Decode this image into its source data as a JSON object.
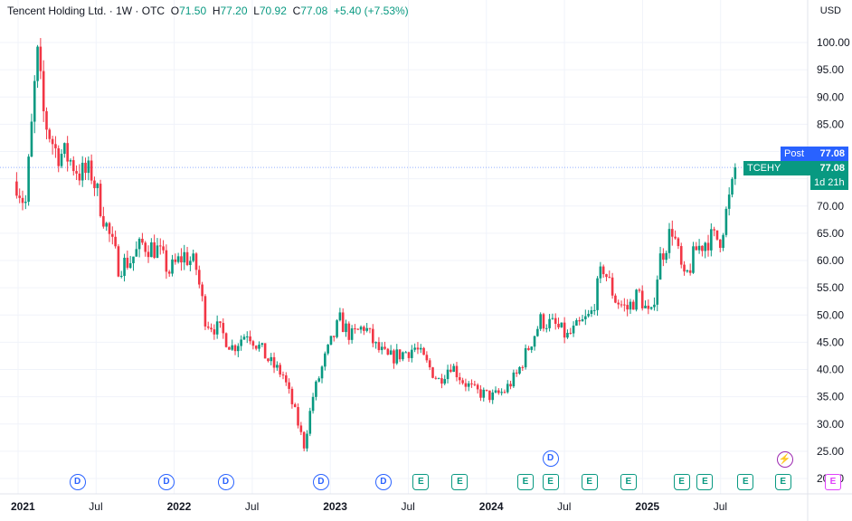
{
  "header": {
    "name": "Tencent Holding Ltd.",
    "interval": "1W",
    "exchange": "OTC",
    "open_label": "O",
    "open": "71.50",
    "high_label": "H",
    "high": "77.20",
    "low_label": "L",
    "low": "70.92",
    "close_label": "C",
    "close": "77.08",
    "change": "+5.40 (+7.53%)"
  },
  "currency": "USD",
  "tags": {
    "post_label": "Post",
    "post_value": "77.08",
    "symbol": "TCEHY",
    "symbol_value": "77.08",
    "countdown": "1d 21h"
  },
  "colors": {
    "up": "#089981",
    "down": "#f23645",
    "post": "#2962ff"
  },
  "events": [
    {
      "type": "D",
      "date": "2021.38"
    },
    {
      "type": "D",
      "date": "2021.95"
    },
    {
      "type": "D",
      "date": "2022.33"
    },
    {
      "type": "D",
      "date": "2022.94"
    },
    {
      "type": "D",
      "date": "2023.34"
    },
    {
      "type": "E",
      "date": "2023.58"
    },
    {
      "type": "E",
      "date": "2023.83"
    },
    {
      "type": "E",
      "date": "2024.25"
    },
    {
      "type": "D",
      "date": "2024.41"
    },
    {
      "type": "E",
      "date": "2024.41"
    },
    {
      "type": "E",
      "date": "2024.66"
    },
    {
      "type": "E",
      "date": "2024.91"
    },
    {
      "type": "E",
      "date": "2025.25"
    },
    {
      "type": "E",
      "date": "2025.4"
    },
    {
      "type": "E",
      "date": "2025.66"
    },
    {
      "type": "E",
      "date": "2025.9"
    }
  ],
  "chart_data": {
    "type": "candlestick",
    "title": "Tencent Holding Ltd. · 1W · OTC",
    "x_tick_labels": [
      "2021",
      "Jul",
      "2022",
      "Jul",
      "2023",
      "Jul",
      "2024",
      "Jul",
      "2025",
      "Jul"
    ],
    "y_tick_labels": [
      "100.00",
      "95.00",
      "90.00",
      "85.00",
      "80.00",
      "75.00",
      "70.00",
      "65.00",
      "60.00",
      "55.00",
      "50.00",
      "45.00",
      "40.00",
      "35.00",
      "30.00",
      "25.00",
      "20.00"
    ],
    "ylim": [
      18,
      103
    ],
    "grid": true,
    "last_price": 77.08,
    "series": [
      {
        "date": "2020-12-28",
        "close": 74.5
      },
      {
        "date": "2021-01-18",
        "close": 70
      },
      {
        "date": "2021-02-01",
        "close": 83
      },
      {
        "date": "2021-02-15",
        "close": 98
      },
      {
        "date": "2021-03-01",
        "close": 86
      },
      {
        "date": "2021-03-29",
        "close": 80
      },
      {
        "date": "2021-04-26",
        "close": 79
      },
      {
        "date": "2021-05-24",
        "close": 76
      },
      {
        "date": "2021-06-21",
        "close": 76
      },
      {
        "date": "2021-07-26",
        "close": 66
      },
      {
        "date": "2021-08-23",
        "close": 59
      },
      {
        "date": "2021-09-20",
        "close": 60
      },
      {
        "date": "2021-10-18",
        "close": 63
      },
      {
        "date": "2021-11-22",
        "close": 62
      },
      {
        "date": "2021-12-20",
        "close": 58
      },
      {
        "date": "2022-01-24",
        "close": 61
      },
      {
        "date": "2022-02-21",
        "close": 59
      },
      {
        "date": "2022-03-14",
        "close": 49
      },
      {
        "date": "2022-04-18",
        "close": 47
      },
      {
        "date": "2022-05-16",
        "close": 44
      },
      {
        "date": "2022-06-20",
        "close": 47
      },
      {
        "date": "2022-07-18",
        "close": 44
      },
      {
        "date": "2022-08-15",
        "close": 41
      },
      {
        "date": "2022-09-12",
        "close": 39
      },
      {
        "date": "2022-10-10",
        "close": 32
      },
      {
        "date": "2022-10-31",
        "close": 26
      },
      {
        "date": "2022-11-21",
        "close": 35
      },
      {
        "date": "2022-12-19",
        "close": 42
      },
      {
        "date": "2023-01-23",
        "close": 49
      },
      {
        "date": "2023-02-20",
        "close": 46
      },
      {
        "date": "2023-03-20",
        "close": 48
      },
      {
        "date": "2023-04-17",
        "close": 44
      },
      {
        "date": "2023-05-15",
        "close": 42
      },
      {
        "date": "2023-06-19",
        "close": 43
      },
      {
        "date": "2023-07-17",
        "close": 44
      },
      {
        "date": "2023-08-14",
        "close": 41
      },
      {
        "date": "2023-09-11",
        "close": 38
      },
      {
        "date": "2023-10-09",
        "close": 41
      },
      {
        "date": "2023-11-06",
        "close": 38
      },
      {
        "date": "2023-12-04",
        "close": 36
      },
      {
        "date": "2024-01-15",
        "close": 35
      },
      {
        "date": "2024-02-12",
        "close": 36
      },
      {
        "date": "2024-03-11",
        "close": 39
      },
      {
        "date": "2024-04-08",
        "close": 44
      },
      {
        "date": "2024-05-06",
        "close": 49
      },
      {
        "date": "2024-06-10",
        "close": 48
      },
      {
        "date": "2024-07-08",
        "close": 46
      },
      {
        "date": "2024-08-05",
        "close": 48
      },
      {
        "date": "2024-09-02",
        "close": 50
      },
      {
        "date": "2024-09-30",
        "close": 59
      },
      {
        "date": "2024-10-28",
        "close": 53
      },
      {
        "date": "2024-11-25",
        "close": 51
      },
      {
        "date": "2024-12-23",
        "close": 54
      },
      {
        "date": "2025-01-20",
        "close": 49
      },
      {
        "date": "2025-02-10",
        "close": 60
      },
      {
        "date": "2025-03-10",
        "close": 66
      },
      {
        "date": "2025-04-07",
        "close": 56
      },
      {
        "date": "2025-05-05",
        "close": 62
      },
      {
        "date": "2025-06-02",
        "close": 64
      },
      {
        "date": "2025-06-30",
        "close": 64
      },
      {
        "date": "2025-07-21",
        "close": 71
      },
      {
        "date": "2025-08-11",
        "close": 77.08
      }
    ]
  }
}
